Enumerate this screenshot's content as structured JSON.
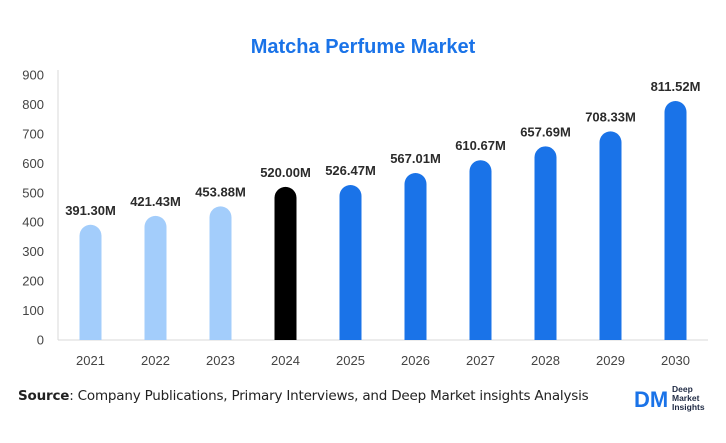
{
  "chart_data": {
    "type": "bar",
    "title": "Matcha Perfume Market",
    "categories": [
      "2021",
      "2022",
      "2023",
      "2024",
      "2025",
      "2026",
      "2027",
      "2028",
      "2029",
      "2030"
    ],
    "values": [
      391.3,
      421.43,
      453.88,
      520.0,
      526.47,
      567.01,
      610.67,
      657.69,
      708.33,
      811.52
    ],
    "data_labels": [
      "391.30M",
      "421.43M",
      "453.88M",
      "520.00M",
      "526.47M",
      "567.01M",
      "610.67M",
      "657.69M",
      "708.33M",
      "811.52M"
    ],
    "bar_colors": [
      "#a3cdfb",
      "#a3cdfb",
      "#a3cdfb",
      "#000000",
      "#1a73e8",
      "#1a73e8",
      "#1a73e8",
      "#1a73e8",
      "#1a73e8",
      "#1a73e8"
    ],
    "yticks": [
      "0",
      "100",
      "200",
      "300",
      "400",
      "500",
      "600",
      "700",
      "800",
      "900"
    ],
    "ylim": [
      0,
      900
    ],
    "xlabel": "",
    "ylabel": "",
    "grid": false,
    "legend": "none"
  },
  "source": {
    "label": "Source",
    "text": ": Company Publications, Primary Interviews, and Deep Market insights Analysis"
  },
  "logo": {
    "mark_text": "DM",
    "line1": "Deep",
    "line2": "Market",
    "line3": "Insights",
    "color": "#1a73e8"
  }
}
